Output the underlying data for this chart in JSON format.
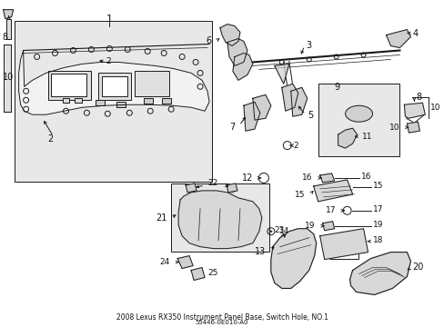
{
  "title": "2008 Lexus RX350 Instrument Panel Base, Switch Hole, NO.1",
  "part_number": "55446-0E010-A0",
  "bg_color": "#ffffff",
  "line_color": "#1a1a1a",
  "panel_fill": "#e8e8e8",
  "box_fill": "#e8e8e8",
  "figsize": [
    4.89,
    3.6
  ],
  "dpi": 100,
  "font_size": 7,
  "title_font_size": 6
}
